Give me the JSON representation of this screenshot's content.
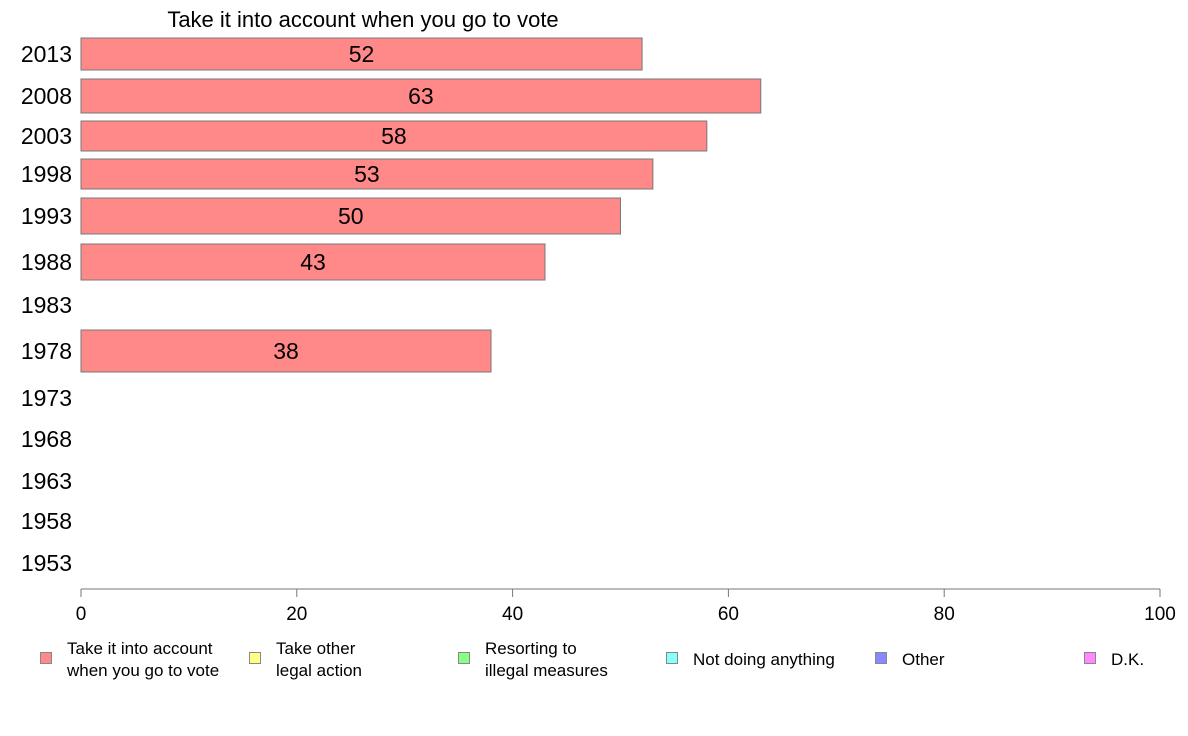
{
  "chart_data": {
    "type": "bar",
    "orientation": "horizontal",
    "title": "Take it into account when you go to vote",
    "categories": [
      "2013",
      "2008",
      "2003",
      "1998",
      "1993",
      "1988",
      "1983",
      "1978",
      "1973",
      "1968",
      "1963",
      "1958",
      "1953"
    ],
    "series": [
      {
        "name": "Take it into account\nwhen you go to vote",
        "color": "#ff8888",
        "values": [
          52,
          63,
          58,
          53,
          50,
          43,
          null,
          38,
          null,
          null,
          null,
          null,
          null
        ]
      }
    ],
    "xlim": [
      0,
      100
    ],
    "xticks": [
      0,
      20,
      40,
      60,
      80,
      100
    ],
    "grid": false,
    "legend_position": "bottom",
    "legend": [
      {
        "label": "Take it into account\nwhen you go to vote",
        "color": "#ff8888"
      },
      {
        "label": "Take other\nlegal action",
        "color": "#ffff88"
      },
      {
        "label": "Resorting to\nillegal measures",
        "color": "#88ff88"
      },
      {
        "label": "Not doing anything",
        "color": "#88ffff"
      },
      {
        "label": "Other",
        "color": "#8888ff"
      },
      {
        "label": "D.K.",
        "color": "#ff88ff"
      }
    ]
  }
}
